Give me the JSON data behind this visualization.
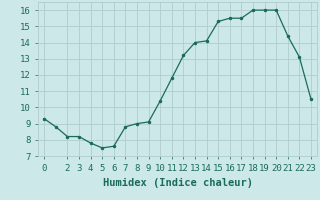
{
  "x": [
    0,
    1,
    2,
    3,
    4,
    5,
    6,
    7,
    8,
    9,
    10,
    11,
    12,
    13,
    14,
    15,
    16,
    17,
    18,
    19,
    20,
    21,
    22,
    23
  ],
  "y": [
    9.3,
    8.8,
    8.2,
    8.2,
    7.8,
    7.5,
    7.6,
    8.8,
    9.0,
    9.1,
    10.4,
    11.8,
    13.2,
    14.0,
    14.1,
    15.3,
    15.5,
    15.5,
    16.0,
    16.0,
    16.0,
    14.4,
    13.1,
    10.5
  ],
  "xlabel": "Humidex (Indice chaleur)",
  "xlim": [
    -0.5,
    23.5
  ],
  "ylim": [
    7,
    16.5
  ],
  "yticks": [
    7,
    8,
    9,
    10,
    11,
    12,
    13,
    14,
    15,
    16
  ],
  "xtick_positions": [
    0,
    2,
    3,
    4,
    5,
    6,
    7,
    8,
    9,
    10,
    11,
    12,
    13,
    14,
    15,
    16,
    17,
    18,
    19,
    20,
    21,
    22,
    23
  ],
  "xtick_labels": [
    "0",
    "2",
    "3",
    "4",
    "5",
    "6",
    "7",
    "8",
    "9",
    "10",
    "11",
    "12",
    "13",
    "14",
    "15",
    "16",
    "17",
    "18",
    "19",
    "20",
    "21",
    "22",
    "23"
  ],
  "line_color": "#1a6b5a",
  "marker_color": "#1a6b5a",
  "bg_color": "#cce8e8",
  "grid_color": "#b0cccc",
  "font_color": "#1a6b5a",
  "tick_fontsize": 6.5,
  "xlabel_fontsize": 7.5
}
